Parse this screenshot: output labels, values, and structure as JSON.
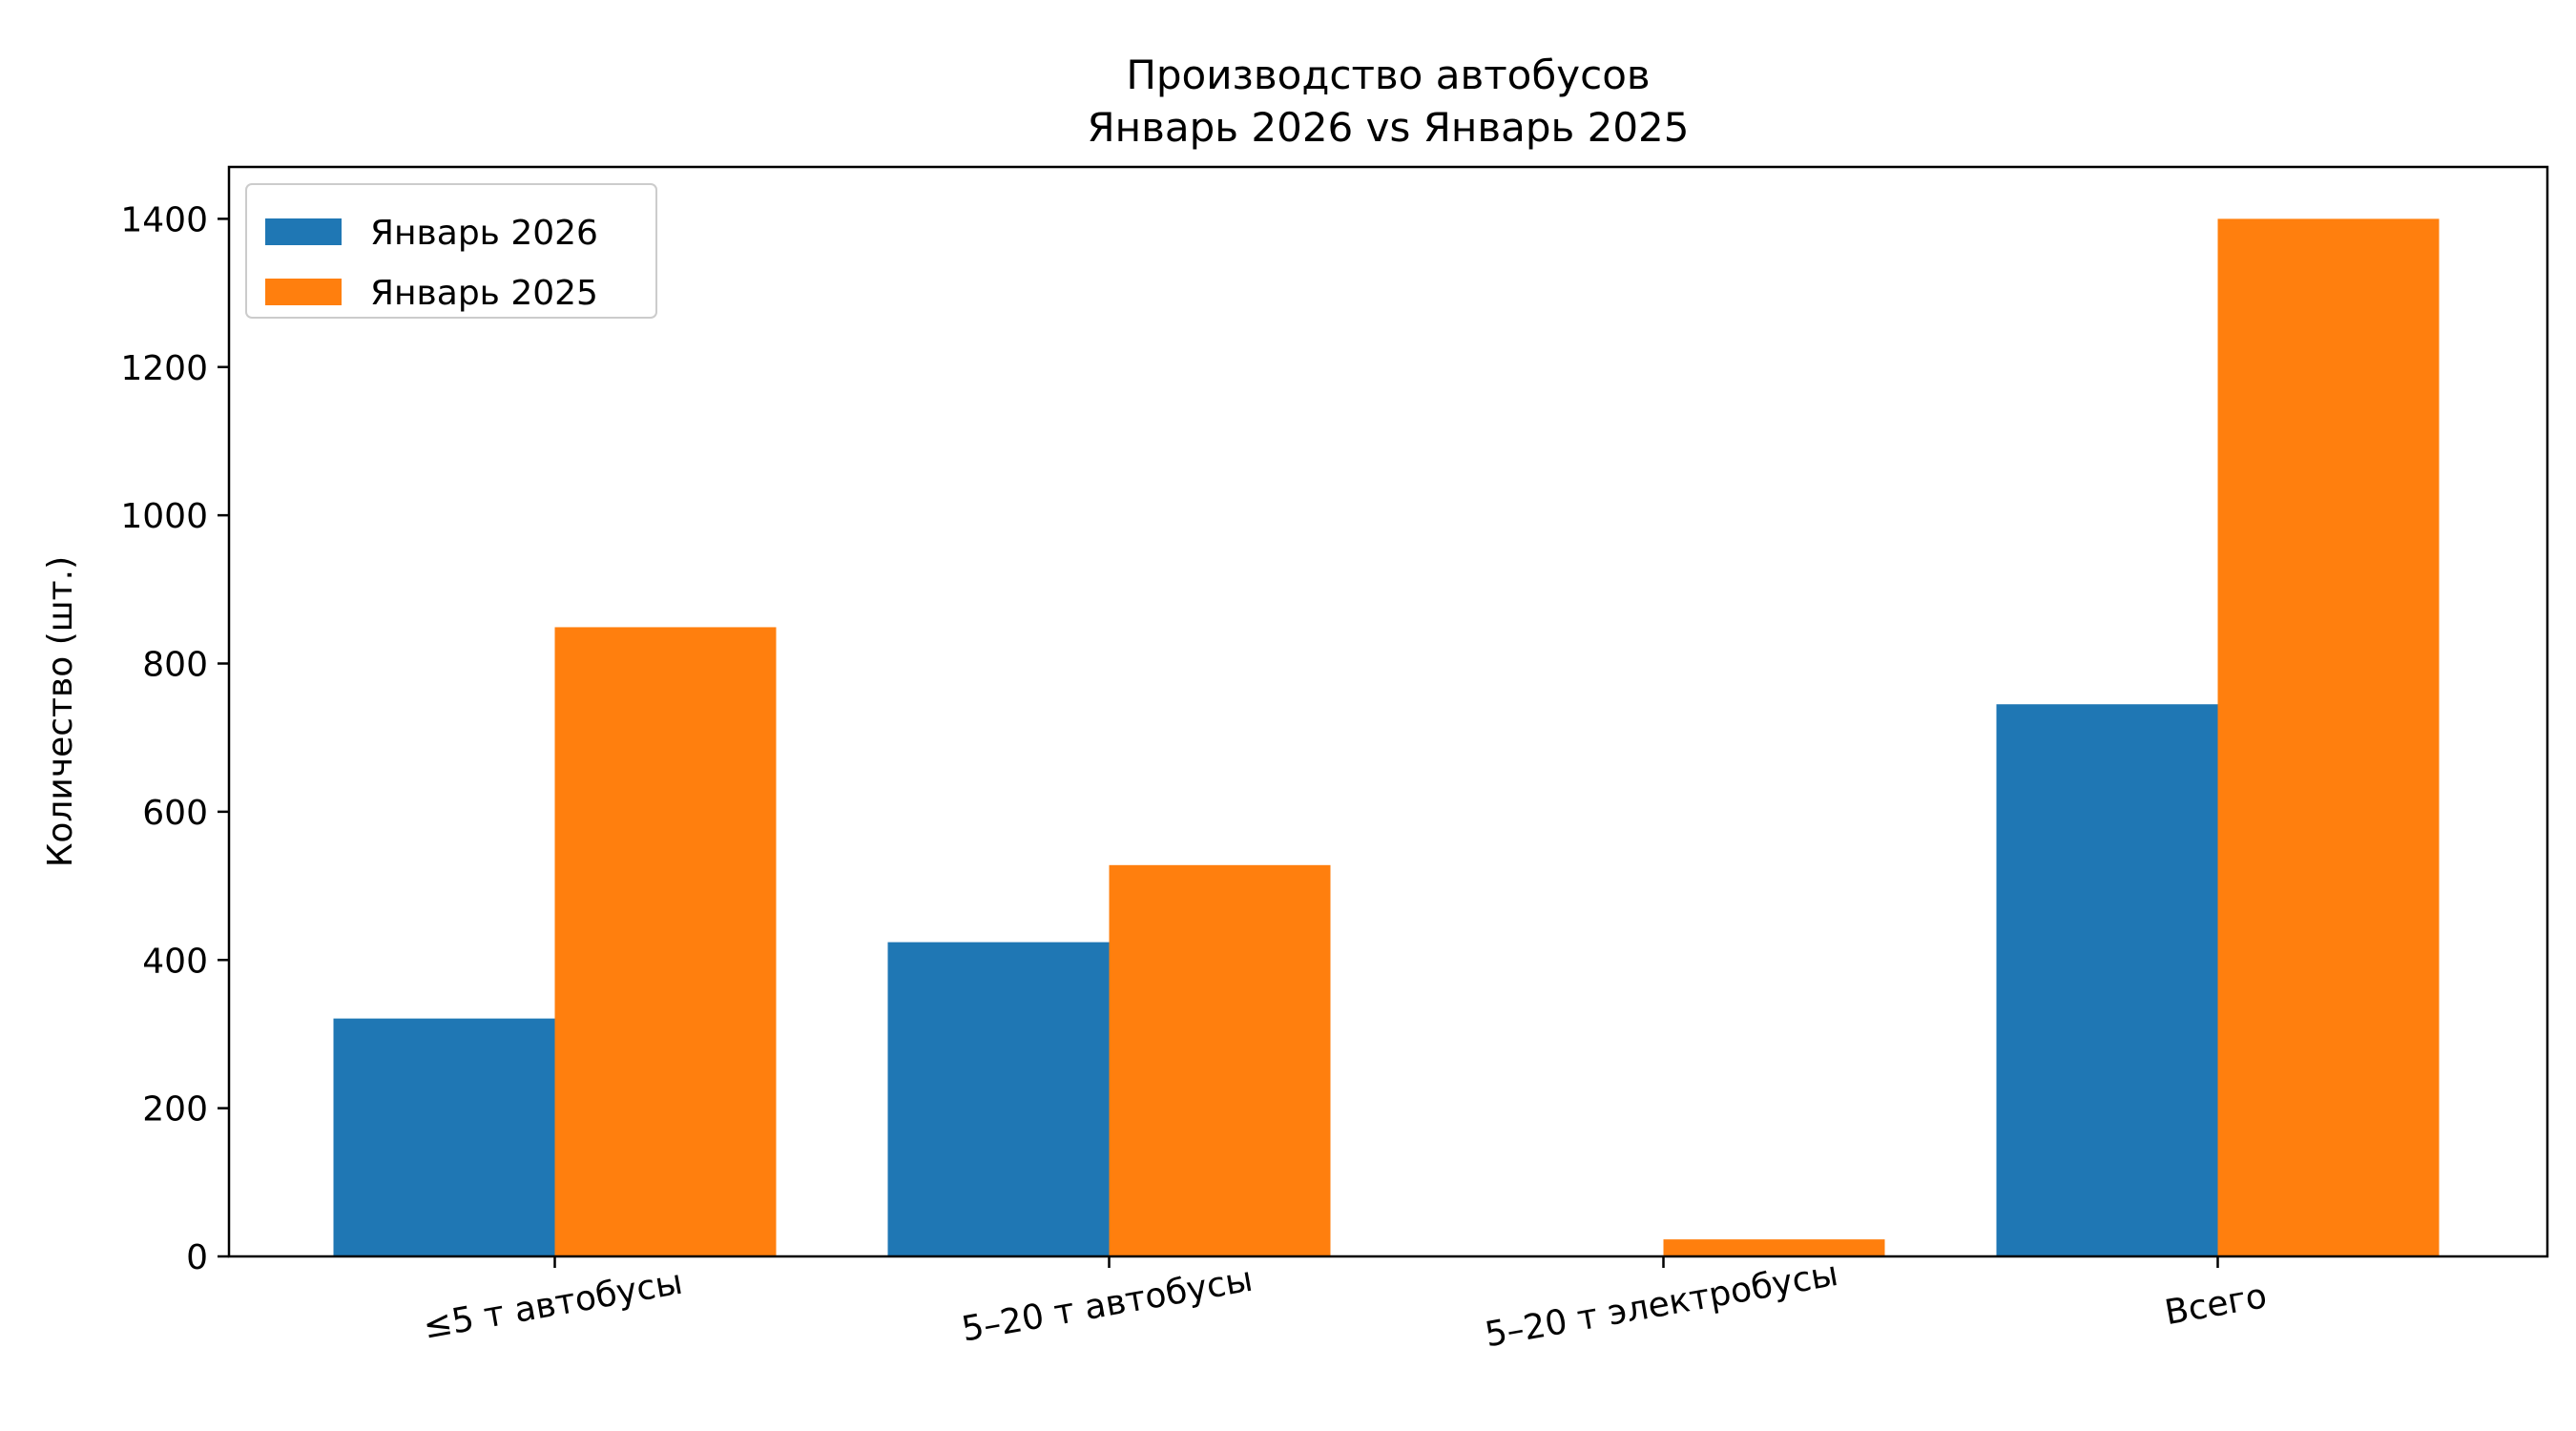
{
  "chart_data": {
    "type": "bar",
    "title": "Производство автобусов",
    "subtitle": "Январь 2026 vs Январь 2025",
    "xlabel": "",
    "ylabel": "Количество (шт.)",
    "categories": [
      "≤5 т автобусы",
      "5–20 т автобусы",
      "5–20 т электробусы",
      "Всего"
    ],
    "series": [
      {
        "name": "Январь 2026",
        "color": "#1f77b4",
        "values": [
          321,
          424,
          0,
          745
        ]
      },
      {
        "name": "Январь 2025",
        "color": "#ff7f0e",
        "values": [
          849,
          528,
          23,
          1400
        ]
      }
    ],
    "ylim": [
      0,
      1470
    ],
    "yticks": [
      0,
      200,
      400,
      600,
      800,
      1000,
      1200,
      1400
    ],
    "grid": false,
    "legend_position": "top-left"
  }
}
